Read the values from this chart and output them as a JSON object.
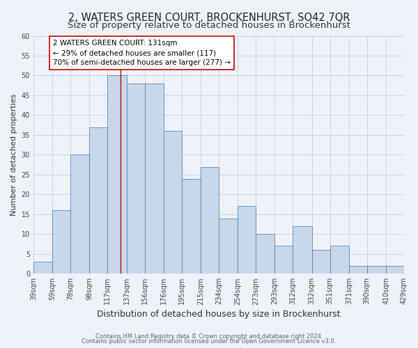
{
  "title": "2, WATERS GREEN COURT, BROCKENHURST, SO42 7QR",
  "subtitle": "Size of property relative to detached houses in Brockenhurst",
  "xlabel": "Distribution of detached houses by size in Brockenhurst",
  "ylabel": "Number of detached properties",
  "bins": [
    39,
    59,
    78,
    98,
    117,
    137,
    156,
    176,
    195,
    215,
    234,
    254,
    273,
    293,
    312,
    332,
    351,
    371,
    390,
    410,
    429
  ],
  "counts": [
    3,
    16,
    30,
    37,
    50,
    48,
    48,
    36,
    24,
    27,
    14,
    17,
    10,
    7,
    12,
    6,
    7,
    2,
    2,
    2
  ],
  "bar_color": "#c8d8eb",
  "bar_edge_color": "#5588bb",
  "vline_x": 131,
  "vline_color": "#cc0000",
  "annotation_text": "2 WATERS GREEN COURT: 131sqm\n← 29% of detached houses are smaller (117)\n70% of semi-detached houses are larger (277) →",
  "annotation_box_facecolor": "#ffffff",
  "annotation_box_edgecolor": "#cc0000",
  "ylim": [
    0,
    60
  ],
  "yticks": [
    0,
    5,
    10,
    15,
    20,
    25,
    30,
    35,
    40,
    45,
    50,
    55,
    60
  ],
  "tick_labels": [
    "39sqm",
    "59sqm",
    "78sqm",
    "98sqm",
    "117sqm",
    "137sqm",
    "156sqm",
    "176sqm",
    "195sqm",
    "215sqm",
    "234sqm",
    "254sqm",
    "273sqm",
    "293sqm",
    "312sqm",
    "332sqm",
    "351sqm",
    "371sqm",
    "390sqm",
    "410sqm",
    "429sqm"
  ],
  "footer1": "Contains HM Land Registry data © Crown copyright and database right 2024.",
  "footer2": "Contains public sector information licensed under the Open Government Licence v3.0.",
  "background_color": "#eef2f8",
  "grid_color": "#c8ccd8",
  "title_fontsize": 10.5,
  "subtitle_fontsize": 9.5,
  "xlabel_fontsize": 9,
  "ylabel_fontsize": 8,
  "tick_fontsize": 7,
  "annotation_fontsize": 7.5,
  "footer_fontsize": 6
}
